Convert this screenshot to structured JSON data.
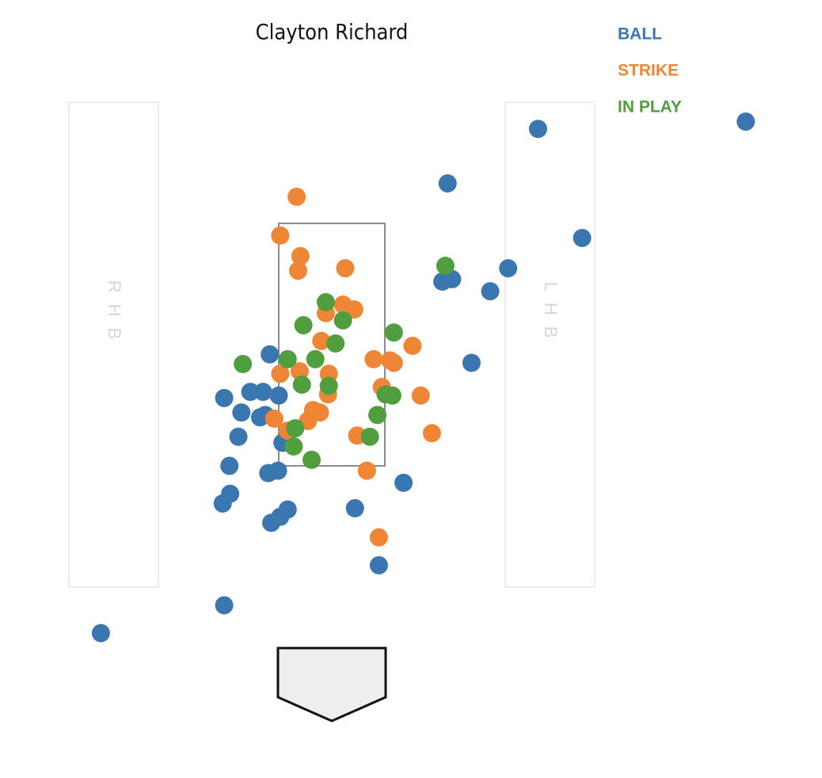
{
  "chart_data": {
    "type": "scatter",
    "title": "Clayton Richard",
    "annotations": [
      "RHB",
      "LHB"
    ],
    "xlim": [
      -4.44,
      6.56
    ],
    "ylim": [
      -1.075,
      5.343
    ],
    "strike_zone": {
      "x": [
        -0.71,
        0.71
      ],
      "y": [
        1.5,
        3.5
      ]
    },
    "legend": "top-right",
    "series": [
      {
        "name": "BALL",
        "color": "#3a76af",
        "x": [
          2.76,
          5.54,
          1.55,
          3.35,
          2.36,
          1.48,
          1.61,
          2.12,
          1.87,
          -0.83,
          -1.44,
          -1.09,
          -0.92,
          -0.71,
          -1.21,
          -0.96,
          -0.89,
          -1.25,
          -0.66,
          -1.37,
          -0.85,
          -0.72,
          0.96,
          -1.36,
          -1.46,
          -0.59,
          -0.69,
          -0.81,
          0.31,
          0.63,
          -1.44,
          -3.09
        ],
        "values": [
          4.28,
          4.34,
          3.83,
          3.38,
          3.13,
          3.02,
          3.04,
          2.94,
          2.35,
          2.42,
          2.06,
          2.11,
          2.11,
          2.08,
          1.94,
          1.9,
          1.92,
          1.74,
          1.69,
          1.5,
          1.44,
          1.46,
          1.36,
          1.27,
          1.19,
          1.14,
          1.08,
          1.03,
          1.15,
          0.68,
          0.35,
          0.12
        ]
      },
      {
        "name": "STRIKE",
        "color": "#ef8636",
        "x": [
          -0.47,
          -0.69,
          -0.42,
          -0.45,
          0.18,
          0.15,
          0.3,
          -0.08,
          -0.14,
          1.08,
          0.56,
          0.83,
          0.78,
          -0.69,
          -0.43,
          -0.04,
          0.67,
          -0.05,
          1.19,
          -0.77,
          -0.25,
          -0.16,
          -0.32,
          -0.59,
          0.34,
          1.34,
          0.47,
          0.63
        ],
        "values": [
          3.72,
          3.4,
          3.23,
          3.11,
          3.13,
          2.83,
          2.79,
          2.76,
          2.53,
          2.49,
          2.38,
          2.35,
          2.37,
          2.26,
          2.28,
          2.26,
          2.15,
          2.09,
          2.08,
          1.89,
          1.96,
          1.94,
          1.87,
          1.79,
          1.75,
          1.77,
          1.46,
          0.91
        ]
      },
      {
        "name": "IN PLAY",
        "color": "#519e3e",
        "x": [
          1.52,
          -0.08,
          -0.38,
          0.15,
          0.83,
          0.05,
          -0.59,
          -1.19,
          -0.22,
          -0.4,
          -0.04,
          0.72,
          0.81,
          0.61,
          -0.49,
          0.51,
          -0.51,
          -0.27
        ],
        "values": [
          3.15,
          2.85,
          2.66,
          2.7,
          2.6,
          2.51,
          2.38,
          2.34,
          2.38,
          2.17,
          2.16,
          2.09,
          2.08,
          1.92,
          1.81,
          1.74,
          1.66,
          1.55
        ]
      }
    ]
  }
}
